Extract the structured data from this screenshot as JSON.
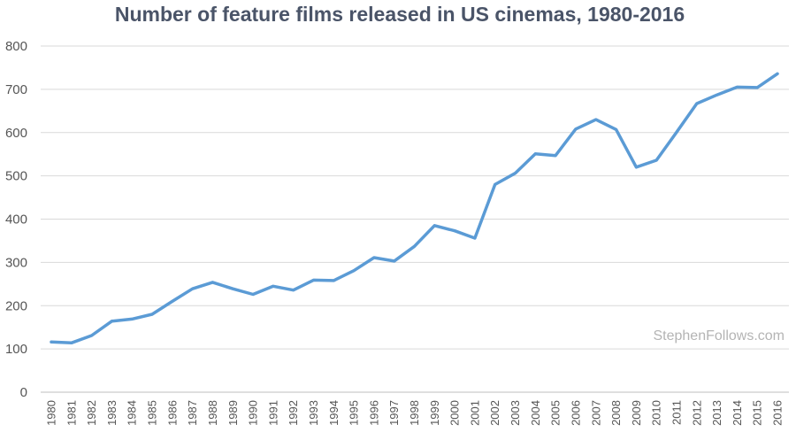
{
  "chart_data": {
    "type": "line",
    "title": "Number of feature films released in US cinemas, 1980-2016",
    "xlabel": "",
    "ylabel": "",
    "ylim": [
      0,
      800
    ],
    "yticks": [
      0,
      100,
      200,
      300,
      400,
      500,
      600,
      700,
      800
    ],
    "grid": true,
    "legend": "none",
    "x": [
      "1980",
      "1981",
      "1982",
      "1983",
      "1984",
      "1985",
      "1986",
      "1987",
      "1988",
      "1989",
      "1990",
      "1991",
      "1992",
      "1993",
      "1994",
      "1995",
      "1996",
      "1997",
      "1998",
      "1999",
      "2000",
      "2001",
      "2002",
      "2003",
      "2004",
      "2005",
      "2006",
      "2007",
      "2008",
      "2009",
      "2010",
      "2011",
      "2012",
      "2013",
      "2014",
      "2015",
      "2016"
    ],
    "series": [
      {
        "color": "#5b9bd5",
        "values": [
          116,
          114,
          131,
          164,
          169,
          180,
          210,
          239,
          254,
          239,
          226,
          245,
          236,
          259,
          258,
          281,
          311,
          303,
          337,
          385,
          373,
          356,
          480,
          506,
          551,
          547,
          608,
          630,
          607,
          520,
          536,
          601,
          667,
          687,
          705,
          704,
          736
        ]
      }
    ],
    "annotations": [
      {
        "text": "StephenFollows.com",
        "position": "bottom-right"
      }
    ]
  }
}
